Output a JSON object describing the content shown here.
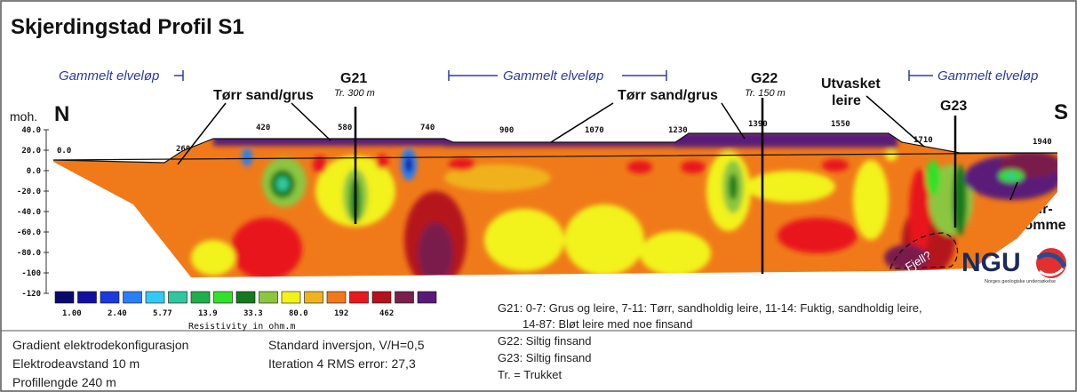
{
  "title": "Skjerdingstad Profil S1",
  "annotations": {
    "old_channel": "Gammelt elveløp",
    "dry_sand": "Tørr sand/grus",
    "washed_clay_1": "Utvasket",
    "washed_clay_2": "leire",
    "clay_pocket_1": "Leir-",
    "clay_pocket_2": "lomme",
    "bedrock": "Fjell?",
    "north": "N",
    "south": "S",
    "moh": "moh."
  },
  "boreholes": [
    {
      "name": "G21",
      "note": "Tr. 300 m"
    },
    {
      "name": "G22",
      "note": "Tr. 150 m"
    },
    {
      "name": "G23",
      "note": ""
    }
  ],
  "x_ticks": [
    "0.0",
    "260",
    "420",
    "580",
    "740",
    "900",
    "1070",
    "1230",
    "1390",
    "1550",
    "1710",
    "1940"
  ],
  "y_ticks": [
    "40.0",
    "20.0",
    "0.0",
    "-20.0",
    "-40.0",
    "-60.0",
    "-80.0",
    "-100",
    "-120"
  ],
  "scale": {
    "values": [
      "1.00",
      "2.40",
      "5.77",
      "13.9",
      "33.3",
      "80.0",
      "192",
      "462"
    ],
    "label": "Resistivity in ohm.m",
    "colors": [
      "#0a0a6e",
      "#1010a0",
      "#1a3ae0",
      "#2b7ef5",
      "#33c9f5",
      "#2fc79d",
      "#1fae4a",
      "#33e02a",
      "#157a1f",
      "#8cc63f",
      "#f2f21a",
      "#f0b21f",
      "#f07a1a",
      "#e8191e",
      "#b5121b",
      "#7a1e4c",
      "#5a1a78"
    ]
  },
  "logo": {
    "text": "NGU",
    "caption": "Norges geologiske undersøkelse"
  },
  "legend": {
    "g21_line1": "G21: 0-7: Grus og leire, 7-11: Tørr, sandholdig leire, 11-14: Fuktig, sandholdig leire,",
    "g21_line2": "14-87: Bløt leire med noe finsand",
    "g22": "G22: Siltig finsand",
    "g23": "G23: Siltig finsand",
    "tr": "Tr. = Trukket"
  },
  "settings": {
    "array": "Gradient elektrodekonfigurasjon",
    "spacing": "Elektrodeavstand 10 m",
    "length": "Profillengde 240 m",
    "inversion": "Standard inversjon, V/H=0,5",
    "iteration": "Iteration 4 RMS error: 27,3"
  }
}
